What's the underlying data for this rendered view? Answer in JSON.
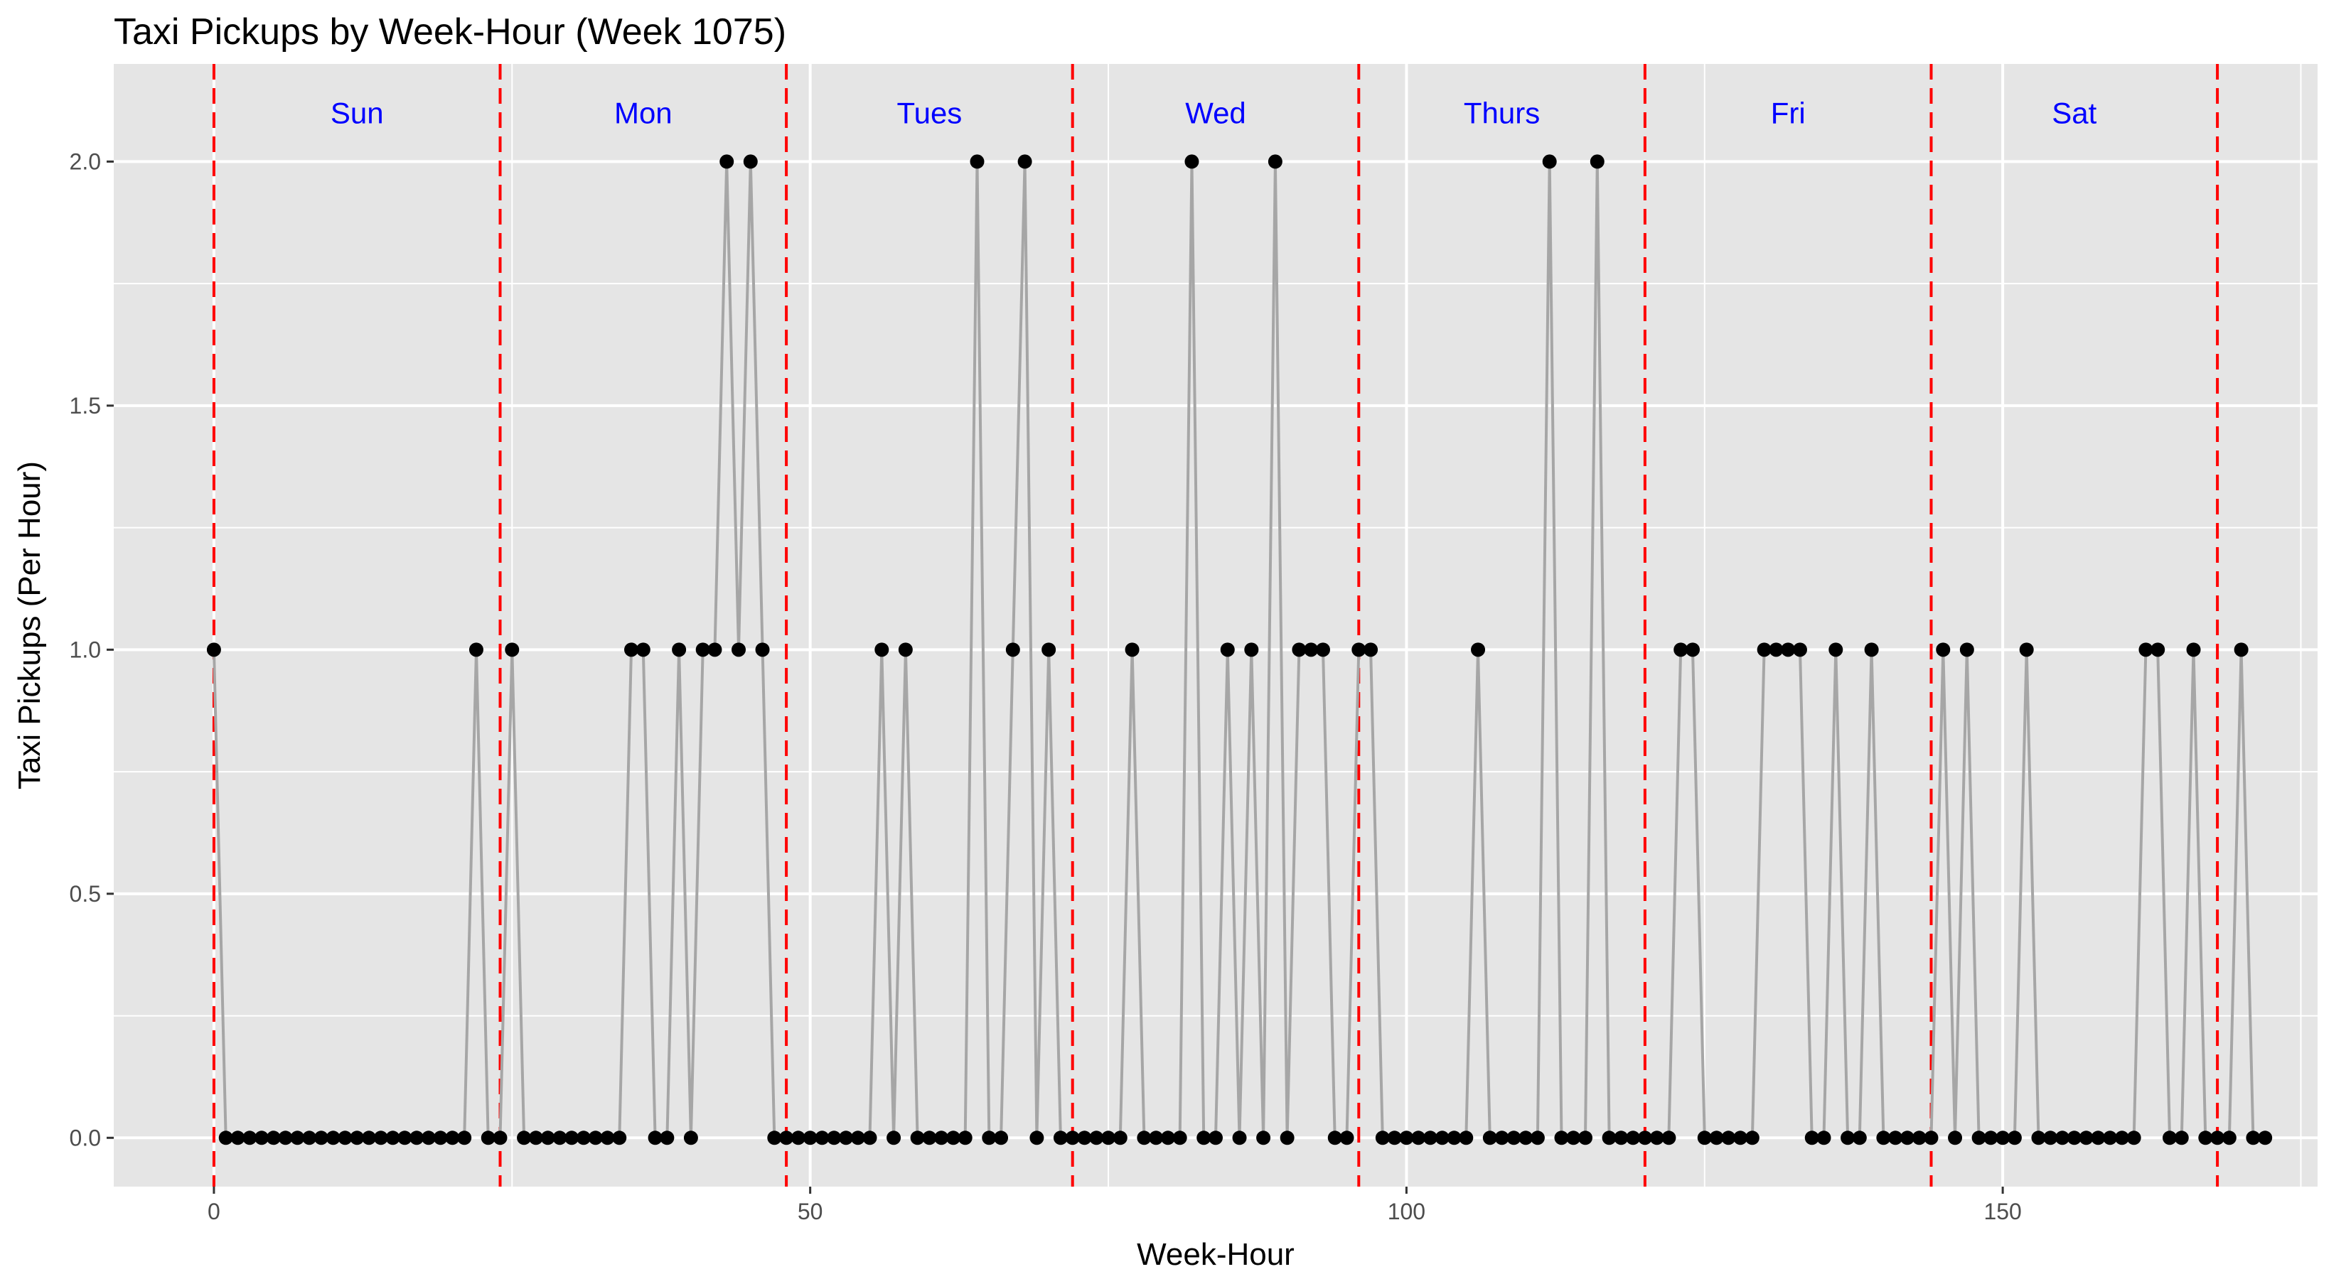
{
  "chart_data": {
    "type": "line",
    "title": "Taxi Pickups by Week-Hour (Week 1075)",
    "xlabel": "Week-Hour",
    "ylabel": "Taxi Pickups (Per Hour)",
    "xlim": [
      -8.4,
      176.4
    ],
    "ylim": [
      -0.1,
      2.2
    ],
    "x_ticks": [
      0,
      50,
      100,
      150
    ],
    "y_ticks": [
      0.0,
      0.5,
      1.0,
      1.5,
      2.0
    ],
    "y_tick_labels": [
      "0.0",
      "0.5",
      "1.0",
      "1.5",
      "2.0"
    ],
    "grid": true,
    "legend": "none",
    "colors": {
      "panel": "#e5e5e5",
      "grid": "#ffffff",
      "line": "#a6a6a6",
      "point": "#000000",
      "day_line": "#ff0000",
      "day_label": "#0000ff"
    },
    "day_boundaries": [
      0,
      24,
      48,
      72,
      96,
      120,
      144,
      168
    ],
    "day_labels": [
      {
        "label": "Sun",
        "x": 12
      },
      {
        "label": "Mon",
        "x": 36
      },
      {
        "label": "Tues",
        "x": 60
      },
      {
        "label": "Wed",
        "x": 84
      },
      {
        "label": "Thurs",
        "x": 108
      },
      {
        "label": "Fri",
        "x": 132
      },
      {
        "label": "Sat",
        "x": 156
      }
    ],
    "day_label_y": 2.1,
    "series": [
      {
        "values": [
          1,
          0,
          0,
          0,
          0,
          0,
          0,
          0,
          0,
          0,
          0,
          0,
          0,
          0,
          0,
          0,
          0,
          0,
          0,
          0,
          0,
          0,
          1,
          0,
          0,
          1,
          0,
          0,
          0,
          0,
          0,
          0,
          0,
          0,
          0,
          1,
          1,
          0,
          0,
          1,
          0,
          1,
          1,
          2,
          1,
          2,
          1,
          0,
          0,
          0,
          0,
          0,
          0,
          0,
          0,
          0,
          1,
          0,
          1,
          0,
          0,
          0,
          0,
          0,
          2,
          0,
          0,
          1,
          2,
          0,
          1,
          0,
          0,
          0,
          0,
          0,
          0,
          1,
          0,
          0,
          0,
          0,
          2,
          0,
          0,
          1,
          0,
          1,
          0,
          2,
          0,
          1,
          1,
          1,
          0,
          0,
          1,
          1,
          0,
          0,
          0,
          0,
          0,
          0,
          0,
          0,
          1,
          0,
          0,
          0,
          0,
          0,
          2,
          0,
          0,
          0,
          2,
          0,
          0,
          0,
          0,
          0,
          0,
          1,
          1,
          0,
          0,
          0,
          0,
          0,
          1,
          1,
          1,
          1,
          0,
          0,
          1,
          0,
          0,
          1,
          0,
          0,
          0,
          0,
          0,
          1,
          0,
          1,
          0,
          0,
          0,
          0,
          1,
          0,
          0,
          0,
          0,
          0,
          0,
          0,
          0,
          0,
          1,
          1,
          0,
          0,
          1,
          0,
          0,
          0,
          1,
          0,
          0
        ]
      }
    ]
  }
}
